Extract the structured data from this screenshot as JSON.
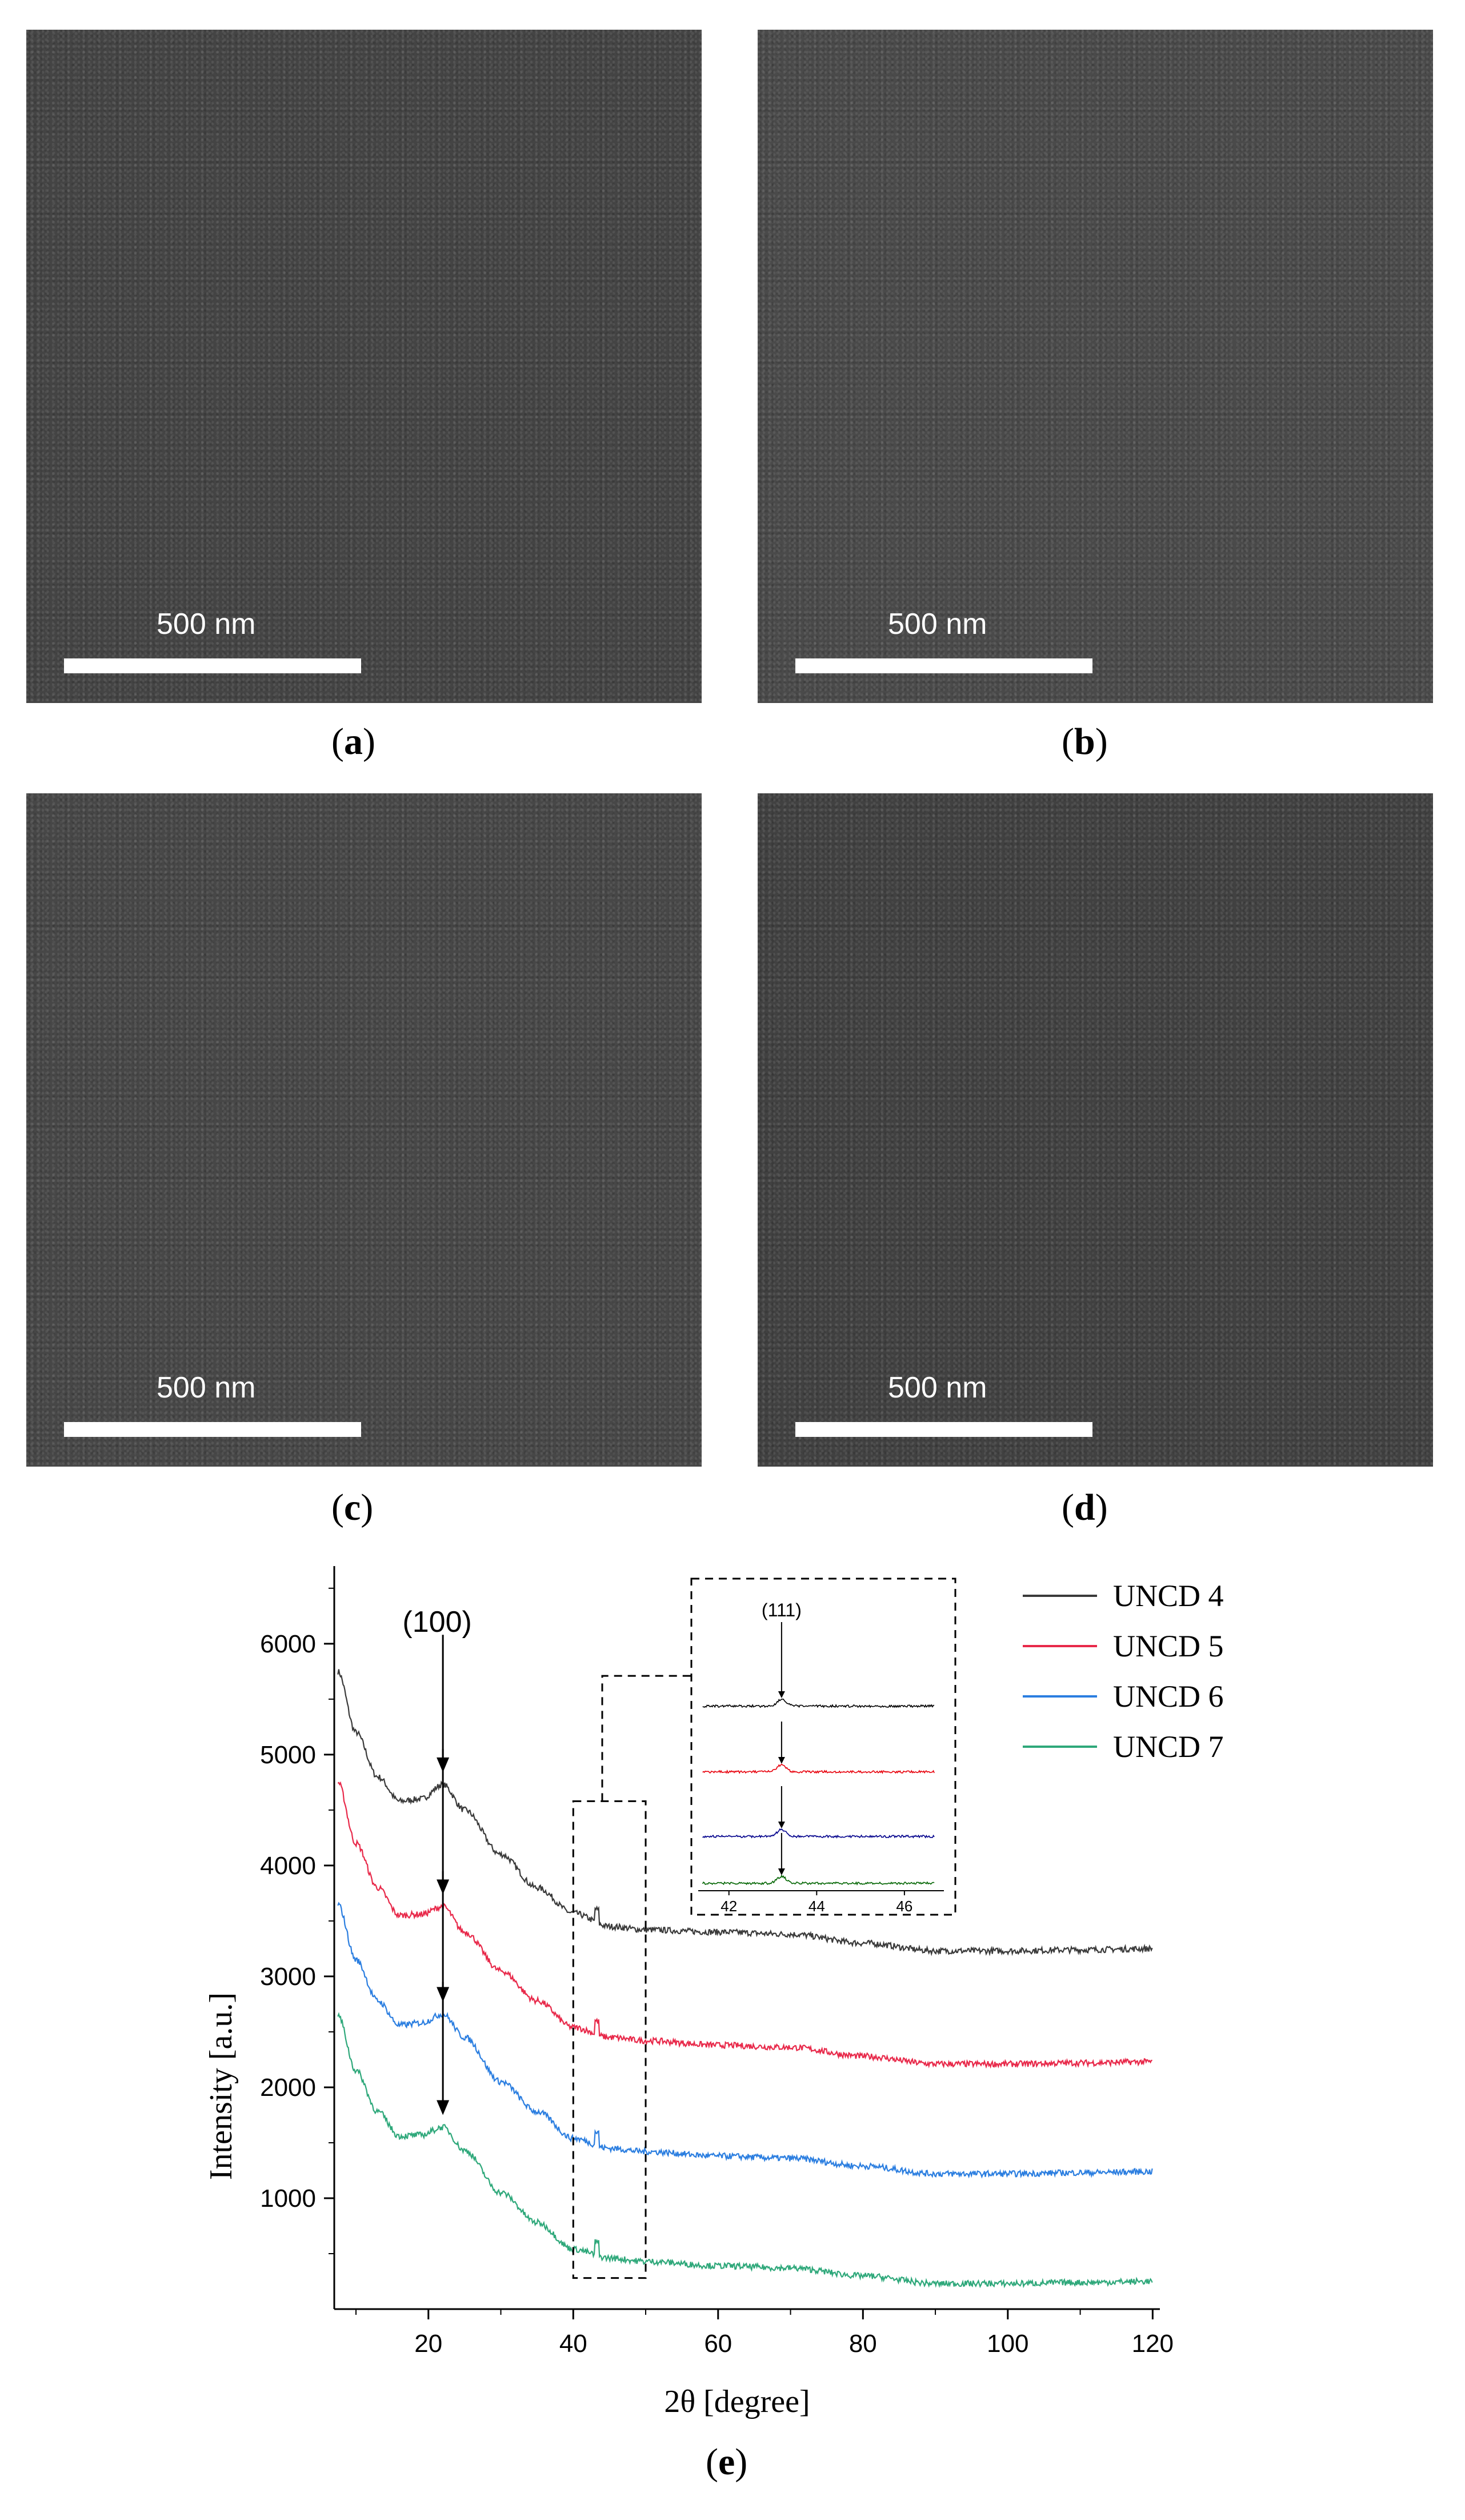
{
  "panels": [
    {
      "letter": "a",
      "scale_label": "500 nm"
    },
    {
      "letter": "b",
      "scale_label": "500 nm"
    },
    {
      "letter": "c",
      "scale_label": "500 nm"
    },
    {
      "letter": "d",
      "scale_label": "500 nm"
    }
  ],
  "chart_panel_letter": "e",
  "chart_data": {
    "type": "line",
    "xlabel": "2θ [degree]",
    "ylabel": "Intensity [a.u.]",
    "xlim": [
      7,
      121
    ],
    "ylim": [
      0,
      6700
    ],
    "xticks": [
      20,
      40,
      60,
      80,
      100,
      120
    ],
    "yticks": [
      1000,
      2000,
      3000,
      4000,
      5000,
      6000
    ],
    "annotations": [
      {
        "text": "(100)",
        "x": 22
      }
    ],
    "legend": {
      "placement": "top-right"
    },
    "series": [
      {
        "name": "UNCD 4",
        "color": "#3a3a3a",
        "x": [
          7.5,
          10,
          13,
          16,
          19,
          22,
          25,
          30,
          35,
          40,
          45,
          50,
          60,
          70,
          80,
          90,
          100,
          110,
          120
        ],
        "y": [
          5750,
          5200,
          4800,
          4580,
          4600,
          4730,
          4500,
          4100,
          3800,
          3570,
          3450,
          3420,
          3400,
          3380,
          3300,
          3230,
          3230,
          3240,
          3250
        ]
      },
      {
        "name": "UNCD 5",
        "color": "#e8294a",
        "x": [
          7.5,
          10,
          13,
          16,
          19,
          22,
          25,
          30,
          35,
          40,
          45,
          50,
          60,
          70,
          80,
          90,
          100,
          110,
          120
        ],
        "y": [
          4750,
          4200,
          3800,
          3550,
          3560,
          3630,
          3400,
          3050,
          2780,
          2540,
          2450,
          2420,
          2380,
          2360,
          2280,
          2210,
          2210,
          2220,
          2230
        ]
      },
      {
        "name": "UNCD 6",
        "color": "#2b7ee0",
        "x": [
          7.5,
          10,
          13,
          16,
          19,
          22,
          25,
          30,
          35,
          40,
          45,
          50,
          60,
          70,
          80,
          90,
          100,
          110,
          120
        ],
        "y": [
          3650,
          3150,
          2780,
          2560,
          2580,
          2660,
          2450,
          2050,
          1780,
          1540,
          1450,
          1420,
          1380,
          1360,
          1290,
          1220,
          1220,
          1230,
          1240
        ]
      },
      {
        "name": "UNCD 7",
        "color": "#2ea87a",
        "x": [
          7.5,
          10,
          13,
          16,
          19,
          22,
          25,
          30,
          35,
          40,
          45,
          50,
          60,
          70,
          80,
          90,
          100,
          110,
          120
        ],
        "y": [
          2650,
          2150,
          1780,
          1560,
          1570,
          1640,
          1430,
          1050,
          780,
          540,
          460,
          430,
          390,
          370,
          300,
          230,
          230,
          240,
          250
        ]
      }
    ],
    "inset": {
      "annotation": "(111)",
      "xlim": [
        41.3,
        46.9
      ],
      "xticks": [
        42,
        44,
        46
      ],
      "peak_x": 43.2,
      "series_colors": [
        "#000000",
        "#e8000b",
        "#00008b",
        "#006400"
      ]
    }
  }
}
